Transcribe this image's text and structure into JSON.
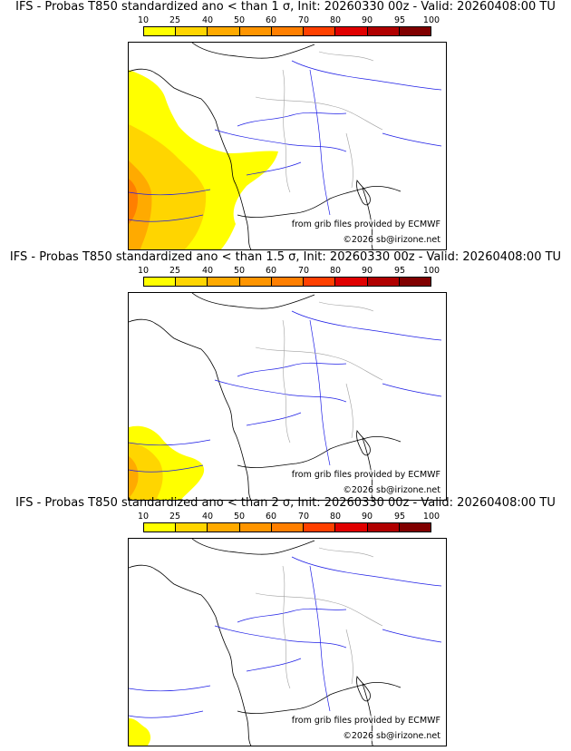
{
  "panels": [
    {
      "title": "IFS - Probas T850  standardized ano < than 1 σ, Init: 20260330 00z - Valid: 20260408:00 TU",
      "threshold_sigma": 1,
      "source_credit": "from grib files provided by ECMWF",
      "copyright": "©2026 sb@irizone.net"
    },
    {
      "title": "IFS - Probas T850  standardized ano < than 1.5 σ, Init: 20260330 00z - Valid: 20260408:00 TU",
      "threshold_sigma": 1.5,
      "source_credit": "from grib files provided by ECMWF",
      "copyright": "©2026 sb@irizone.net"
    },
    {
      "title": "IFS - Probas T850  standardized ano < than 2 σ, Init: 20260330 00z - Valid: 20260408:00 TU",
      "threshold_sigma": 2,
      "source_credit": "from grib files provided by ECMWF",
      "copyright": "©2026 sb@irizone.net"
    }
  ],
  "color_scale": {
    "labels": [
      "10",
      "25",
      "40",
      "50",
      "60",
      "70",
      "80",
      "90",
      "95",
      "100"
    ],
    "colors": [
      "#ffff00",
      "#ffd500",
      "#ffaa00",
      "#ff9500",
      "#ff7f00",
      "#ff4000",
      "#e00000",
      "#b00000",
      "#800000"
    ]
  },
  "colors": {
    "coastline": "#000000",
    "rivers": "#1e1ee6",
    "borders": "#a0a0a0"
  }
}
